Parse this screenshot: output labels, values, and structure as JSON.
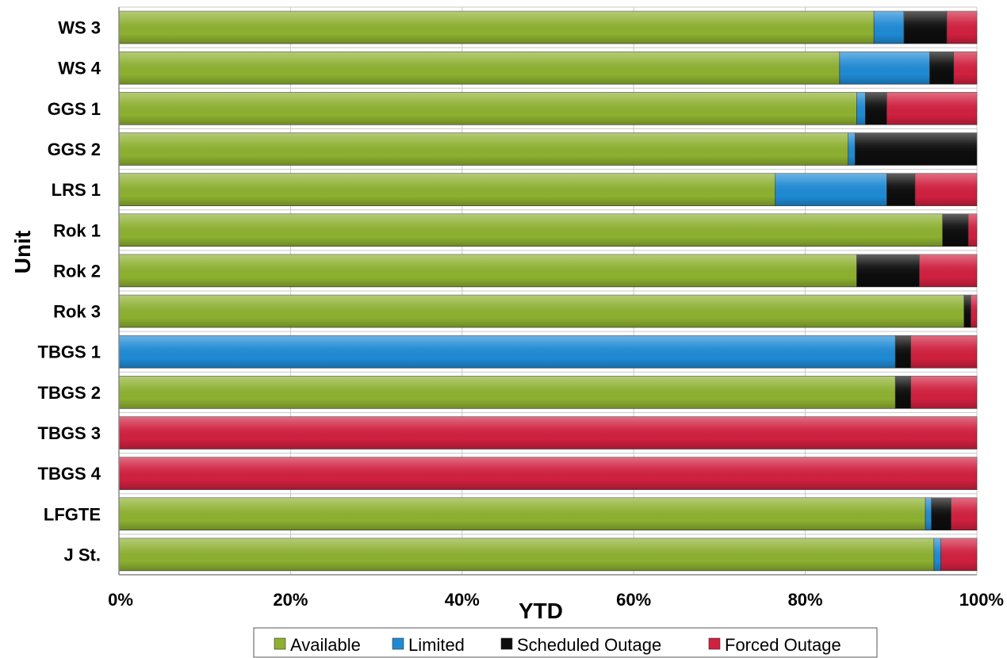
{
  "chart_data": {
    "type": "bar",
    "orientation": "horizontal",
    "stacked": true,
    "title": "",
    "xlabel": "YTD",
    "ylabel": "Unit",
    "xlim": [
      0,
      100
    ],
    "x_ticks": [
      "0%",
      "20%",
      "40%",
      "60%",
      "80%",
      "100%"
    ],
    "grid": true,
    "legend_position": "bottom",
    "categories": [
      "WS 3",
      "WS 4",
      "GGS 1",
      "GGS 2",
      "LRS 1",
      "Rok 1",
      "Rok 2",
      "Rok 3",
      "TBGS 1",
      "TBGS 2",
      "TBGS 3",
      "TBGS 4",
      "LFGTE",
      "J St."
    ],
    "series": [
      {
        "name": "Available",
        "color": "#8db030",
        "values": [
          88,
          84,
          86,
          85,
          76.5,
          96,
          86,
          98.5,
          0,
          90.5,
          0,
          0,
          94,
          95
        ]
      },
      {
        "name": "Limited",
        "color": "#1f8ad4",
        "values": [
          3.5,
          10.5,
          1,
          0.8,
          13,
          0,
          0,
          0,
          90.5,
          0,
          0,
          0,
          0.7,
          0.8
        ]
      },
      {
        "name": "Scheduled Outage",
        "color": "#0d0d0d",
        "values": [
          5,
          2.8,
          2.5,
          14.2,
          3.3,
          3,
          7.3,
          0.8,
          1.8,
          1.8,
          0,
          0,
          2.3,
          0
        ]
      },
      {
        "name": "Forced Outage",
        "color": "#d0203f",
        "values": [
          3.5,
          2.7,
          10.5,
          0,
          7.2,
          1,
          6.7,
          0.7,
          7.7,
          7.7,
          100,
          100,
          3,
          4.2
        ]
      }
    ]
  }
}
